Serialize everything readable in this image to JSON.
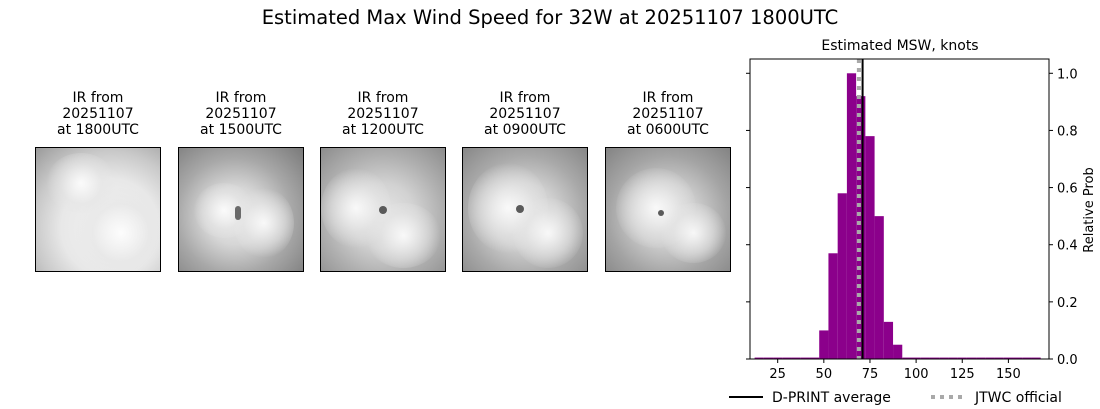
{
  "title": "Estimated Max Wind Speed for 32W at 20251107 1800UTC",
  "ir_panels": [
    {
      "line1": "IR from",
      "line2": "20251107",
      "line3": "at 1800UTC"
    },
    {
      "line1": "IR from",
      "line2": "20251107",
      "line3": "at 1500UTC"
    },
    {
      "line1": "IR from",
      "line2": "20251107",
      "line3": "at 1200UTC"
    },
    {
      "line1": "IR from",
      "line2": "20251107",
      "line3": "at 0900UTC"
    },
    {
      "line1": "IR from",
      "line2": "20251107",
      "line3": "at 0600UTC"
    }
  ],
  "chart_data": {
    "type": "bar",
    "title": "Estimated MSW, knots",
    "xlabel": "",
    "ylabel": "Relative Prob",
    "xlim": [
      10,
      172
    ],
    "ylim": [
      0,
      1.05
    ],
    "xticks": [
      25,
      50,
      75,
      100,
      125,
      150
    ],
    "yticks": [
      0.0,
      0.2,
      0.4,
      0.6,
      0.8,
      1.0
    ],
    "bin_width": 5,
    "bars": [
      {
        "x": 15,
        "y": 0.005
      },
      {
        "x": 20,
        "y": 0.005
      },
      {
        "x": 25,
        "y": 0.005
      },
      {
        "x": 30,
        "y": 0.005
      },
      {
        "x": 35,
        "y": 0.005
      },
      {
        "x": 40,
        "y": 0.005
      },
      {
        "x": 45,
        "y": 0.005
      },
      {
        "x": 50,
        "y": 0.1
      },
      {
        "x": 55,
        "y": 0.37
      },
      {
        "x": 60,
        "y": 0.58
      },
      {
        "x": 65,
        "y": 1.0
      },
      {
        "x": 70,
        "y": 0.92
      },
      {
        "x": 75,
        "y": 0.78
      },
      {
        "x": 80,
        "y": 0.5
      },
      {
        "x": 85,
        "y": 0.13
      },
      {
        "x": 90,
        "y": 0.05
      },
      {
        "x": 95,
        "y": 0.005
      },
      {
        "x": 100,
        "y": 0.005
      },
      {
        "x": 105,
        "y": 0.005
      },
      {
        "x": 110,
        "y": 0.005
      },
      {
        "x": 115,
        "y": 0.005
      },
      {
        "x": 120,
        "y": 0.005
      },
      {
        "x": 125,
        "y": 0.005
      },
      {
        "x": 130,
        "y": 0.005
      },
      {
        "x": 135,
        "y": 0.005
      },
      {
        "x": 140,
        "y": 0.005
      },
      {
        "x": 145,
        "y": 0.005
      },
      {
        "x": 150,
        "y": 0.005
      },
      {
        "x": 155,
        "y": 0.005
      },
      {
        "x": 160,
        "y": 0.005
      },
      {
        "x": 165,
        "y": 0.005
      }
    ],
    "bar_color": "#8b008b",
    "dprint_average": 71,
    "jtwc_official": 69,
    "legend": [
      {
        "label": "D-PRINT average",
        "style": "solid",
        "color": "#000000"
      },
      {
        "label": "JTWC official",
        "style": "dotted",
        "color": "#a9a9a9"
      }
    ],
    "legend_position": "bottom-right"
  }
}
